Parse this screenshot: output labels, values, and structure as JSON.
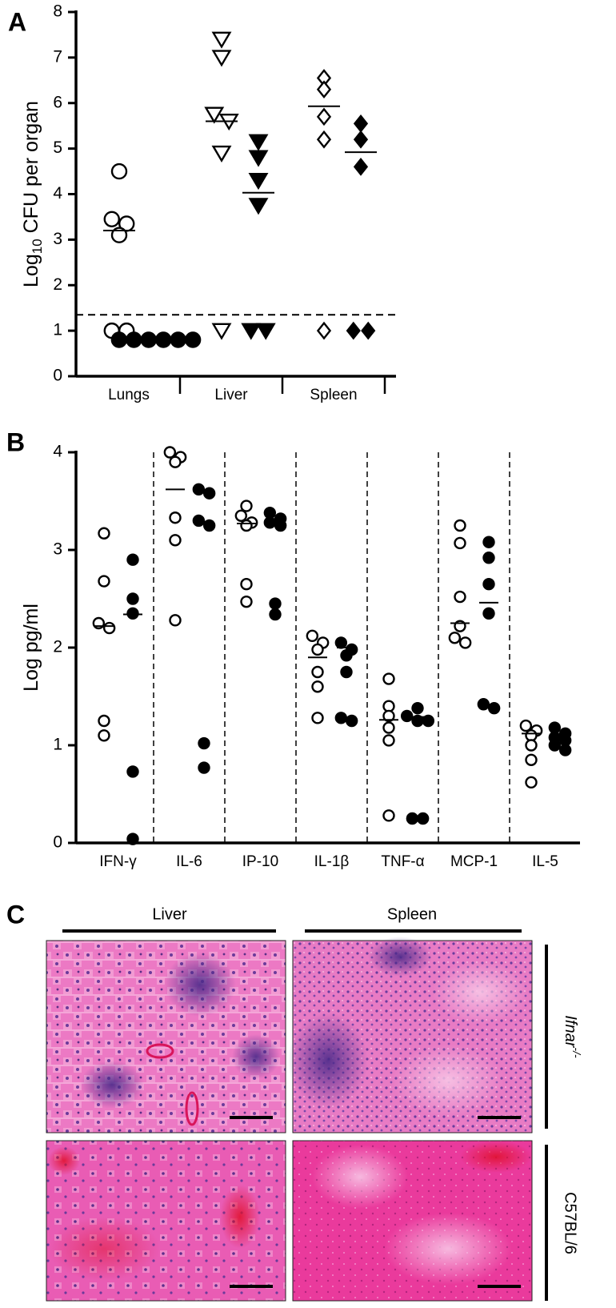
{
  "panel_labels": [
    "A",
    "B",
    "C"
  ],
  "chart_data": [
    {
      "type": "dot",
      "ylabel_parts": [
        "Log",
        "10",
        " CFU per organ"
      ],
      "categories": [
        "Lungs",
        "Liver",
        "Spleen"
      ],
      "markers": [
        "circle",
        "triangle-down",
        "diamond"
      ],
      "ylim": [
        0,
        8
      ],
      "yticks": [
        0,
        1,
        2,
        3,
        4,
        5,
        6,
        7,
        8
      ],
      "threshold": 1.35,
      "series": [
        {
          "color": "#000000",
          "filled": false,
          "values": [
            [
              4.5,
              3.45,
              3.35,
              3.1,
              1.0,
              1.0
            ],
            [
              7.4,
              7.0,
              5.75,
              5.6,
              4.9,
              1.0
            ],
            [
              6.55,
              6.3,
              5.7,
              5.2,
              1.0
            ]
          ],
          "means": [
            3.2,
            5.6,
            5.93
          ]
        },
        {
          "color": "#000000",
          "filled": true,
          "values": [
            [
              0.8,
              0.8,
              0.8,
              0.8,
              0.8,
              0.8
            ],
            [
              5.15,
              4.8,
              4.3,
              3.75,
              1.0,
              1.0
            ],
            [
              5.55,
              5.2,
              4.6,
              1.0,
              1.0
            ]
          ],
          "means": [
            null,
            4.03,
            4.92
          ]
        }
      ]
    },
    {
      "type": "dot",
      "ylabel_parts": [
        "Log pg/ml"
      ],
      "categories": [
        "IFN-γ",
        "IL-6",
        "IP-10",
        "IL-1β",
        "TNF-α",
        "MCP-1",
        "IL-5"
      ],
      "markers": [
        "circle",
        "circle",
        "circle",
        "circle",
        "circle",
        "circle",
        "circle"
      ],
      "ylim": [
        0,
        4
      ],
      "yticks": [
        0,
        1,
        2,
        3,
        4
      ],
      "series": [
        {
          "color": "#000000",
          "filled": false,
          "values": [
            [
              3.17,
              2.68,
              2.25,
              2.2,
              1.25,
              1.1
            ],
            [
              4.0,
              3.95,
              3.9,
              3.33,
              3.1,
              2.28
            ],
            [
              3.45,
              3.35,
              3.28,
              3.25,
              2.65,
              2.47
            ],
            [
              2.12,
              2.05,
              1.98,
              1.75,
              1.6,
              1.28
            ],
            [
              1.68,
              1.4,
              1.3,
              1.18,
              1.05,
              0.28
            ],
            [
              3.25,
              3.07,
              2.52,
              2.22,
              2.1,
              2.05
            ],
            [
              1.2,
              1.15,
              1.1,
              1.0,
              0.85,
              0.62
            ]
          ],
          "means": [
            2.22,
            3.62,
            3.27,
            1.9,
            1.26,
            2.25,
            1.12
          ]
        },
        {
          "color": "#000000",
          "filled": true,
          "values": [
            [
              2.9,
              2.5,
              2.35,
              0.73,
              0.04
            ],
            [
              3.62,
              3.58,
              3.3,
              3.25,
              1.02,
              0.77
            ],
            [
              3.38,
              3.32,
              3.28,
              3.25,
              2.45,
              2.34
            ],
            [
              2.05,
              1.98,
              1.92,
              1.75,
              1.28,
              1.25
            ],
            [
              1.38,
              1.3,
              1.25,
              1.25,
              0.25,
              0.25
            ],
            [
              3.08,
              2.92,
              2.65,
              2.35,
              1.42,
              1.38
            ],
            [
              1.18,
              1.12,
              1.08,
              1.05,
              1.0,
              0.95
            ]
          ],
          "means": [
            2.34,
            3.29,
            3.27,
            2.0,
            1.29,
            2.46,
            1.08
          ]
        }
      ]
    }
  ],
  "histology": {
    "columns": [
      "Liver",
      "Spleen"
    ],
    "rows": [
      {
        "label": "Ifnar",
        "superscript": "-/-"
      },
      {
        "label": "C57BL/6"
      }
    ]
  }
}
